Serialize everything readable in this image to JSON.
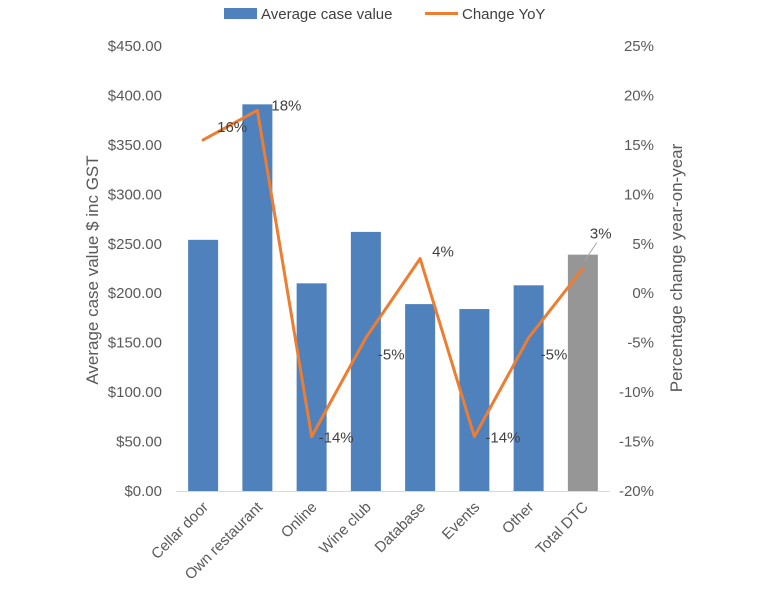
{
  "chart_data": {
    "type": "bar",
    "categories": [
      "Cellar door",
      "Own restaurant",
      "Online",
      "Wine club",
      "Database",
      "Events",
      "Other",
      "Total DTC"
    ],
    "series": [
      {
        "name": "Average case value",
        "type": "bar",
        "axis": "left",
        "color": "#4f81bd",
        "highlight": {
          "category": "Total DTC",
          "color": "#969696"
        },
        "values": [
          254,
          391,
          210,
          262,
          189,
          184,
          208,
          239
        ]
      },
      {
        "name": "Change YoY",
        "type": "line",
        "axis": "right",
        "color": "#ed7d31",
        "values": [
          15.5,
          18.5,
          -14.5,
          -4.5,
          3.5,
          -14.5,
          -4.5,
          2.5
        ],
        "labels": [
          "16%",
          "18%",
          "-14%",
          "-5%",
          "4%",
          "-14%",
          "-5%",
          "3%"
        ]
      }
    ],
    "ylabel": "Average case value $ inc GST",
    "y2label": "Percentage change year-on-year",
    "ylim": [
      0,
      450
    ],
    "y2lim": [
      -20,
      25
    ],
    "yticks": [
      "$0.00",
      "$50.00",
      "$100.00",
      "$150.00",
      "$200.00",
      "$250.00",
      "$300.00",
      "$350.00",
      "$400.00",
      "$450.00"
    ],
    "y2ticks": [
      "-20%",
      "-15%",
      "-10%",
      "-5%",
      "0%",
      "5%",
      "10%",
      "15%",
      "20%",
      "25%"
    ],
    "grid": false,
    "legend": "top-center"
  }
}
